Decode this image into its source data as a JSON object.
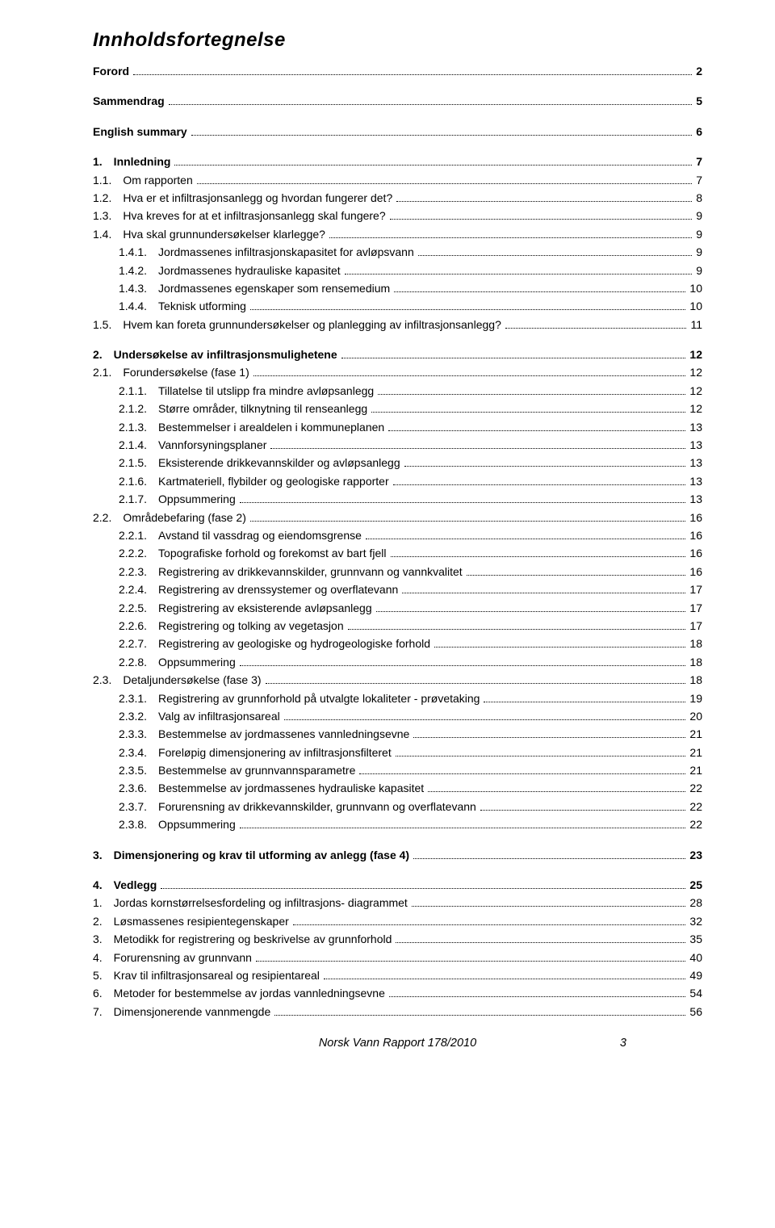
{
  "title": "Innholdsfortegnelse",
  "footer_text": "Norsk Vann Rapport 178/2010",
  "footer_page": "3",
  "toc": [
    {
      "label": "Forord",
      "page": "2",
      "bold": true,
      "indent": 0
    },
    {
      "gap": true
    },
    {
      "label": "Sammendrag",
      "page": "5",
      "bold": true,
      "indent": 0
    },
    {
      "gap": true
    },
    {
      "label": "English summary",
      "page": "6",
      "bold": true,
      "indent": 0
    },
    {
      "gap": true
    },
    {
      "label": "1. Innledning",
      "page": "7",
      "bold": true,
      "indent": 0
    },
    {
      "label": "1.1. Om rapporten",
      "page": "7",
      "indent": 0
    },
    {
      "label": "1.2. Hva er et infiltrasjonsanlegg og hvordan fungerer det?",
      "page": "8",
      "indent": 0
    },
    {
      "label": "1.3. Hva kreves for at et infiltrasjonsanlegg skal fungere?",
      "page": "9",
      "indent": 0
    },
    {
      "label": "1.4. Hva skal grunnundersøkelser klarlegge?",
      "page": "9",
      "indent": 0
    },
    {
      "label": "1.4.1. Jordmassenes infiltrasjonskapasitet for avløpsvann",
      "page": "9",
      "indent": 1
    },
    {
      "label": "1.4.2. Jordmassenes hydrauliske kapasitet",
      "page": "9",
      "indent": 1
    },
    {
      "label": "1.4.3. Jordmassenes egenskaper som rensemedium",
      "page": "10",
      "indent": 1
    },
    {
      "label": "1.4.4. Teknisk utforming",
      "page": "10",
      "indent": 1
    },
    {
      "label": "1.5. Hvem kan foreta grunnundersøkelser og planlegging av infiltrasjonsanlegg?",
      "page": "11",
      "indent": 0
    },
    {
      "gap": true
    },
    {
      "label": "2. Undersøkelse av infiltrasjonsmulighetene",
      "page": "12",
      "bold": true,
      "indent": 0
    },
    {
      "label": "2.1. Forundersøkelse (fase 1)",
      "page": "12",
      "indent": 0
    },
    {
      "label": "2.1.1. Tillatelse til utslipp fra mindre avløpsanlegg",
      "page": "12",
      "indent": 1
    },
    {
      "label": "2.1.2. Større områder, tilknytning til renseanlegg",
      "page": "12",
      "indent": 1
    },
    {
      "label": "2.1.3. Bestemmelser i arealdelen i kommuneplanen",
      "page": "13",
      "indent": 1
    },
    {
      "label": "2.1.4. Vannforsyningsplaner",
      "page": "13",
      "indent": 1
    },
    {
      "label": "2.1.5. Eksisterende drikkevannskilder og avløpsanlegg",
      "page": "13",
      "indent": 1
    },
    {
      "label": "2.1.6. Kartmateriell, flybilder og geologiske rapporter",
      "page": "13",
      "indent": 1
    },
    {
      "label": "2.1.7. Oppsummering",
      "page": "13",
      "indent": 1
    },
    {
      "label": "2.2. Områdebefaring (fase 2)",
      "page": "16",
      "indent": 0
    },
    {
      "label": "2.2.1. Avstand til vassdrag og eiendomsgrense",
      "page": "16",
      "indent": 1
    },
    {
      "label": "2.2.2. Topografiske forhold og forekomst av bart fjell",
      "page": "16",
      "indent": 1
    },
    {
      "label": "2.2.3. Registrering av drikkevannskilder, grunnvann og vannkvalitet",
      "page": "16",
      "indent": 1
    },
    {
      "label": "2.2.4. Registrering av drenssystemer og overflatevann",
      "page": "17",
      "indent": 1
    },
    {
      "label": "2.2.5. Registrering av eksisterende avløpsanlegg",
      "page": "17",
      "indent": 1
    },
    {
      "label": "2.2.6. Registrering og tolking av vegetasjon",
      "page": "17",
      "indent": 1
    },
    {
      "label": "2.2.7. Registrering av geologiske og hydrogeologiske forhold",
      "page": "18",
      "indent": 1
    },
    {
      "label": "2.2.8. Oppsummering",
      "page": "18",
      "indent": 1
    },
    {
      "label": "2.3. Detaljundersøkelse (fase 3)",
      "page": "18",
      "indent": 0
    },
    {
      "label": "2.3.1. Registrering av grunnforhold på utvalgte lokaliteter - prøvetaking",
      "page": "19",
      "indent": 1
    },
    {
      "label": "2.3.2. Valg av infiltrasjonsareal",
      "page": "20",
      "indent": 1
    },
    {
      "label": "2.3.3. Bestemmelse av jordmassenes vannledningsevne",
      "page": "21",
      "indent": 1
    },
    {
      "label": "2.3.4. Foreløpig dimensjonering av infiltrasjonsfilteret",
      "page": "21",
      "indent": 1
    },
    {
      "label": "2.3.5. Bestemmelse av grunnvannsparametre",
      "page": "21",
      "indent": 1
    },
    {
      "label": "2.3.6. Bestemmelse av jordmassenes hydrauliske kapasitet",
      "page": "22",
      "indent": 1
    },
    {
      "label": "2.3.7. Forurensning av drikkevannskilder, grunnvann og overflatevann",
      "page": "22",
      "indent": 1
    },
    {
      "label": "2.3.8. Oppsummering",
      "page": "22",
      "indent": 1
    },
    {
      "gap": true
    },
    {
      "label": "3. Dimensjonering og krav til utforming av anlegg (fase 4)",
      "page": "23",
      "bold": true,
      "indent": 0
    },
    {
      "gap": true
    },
    {
      "label": "4. Vedlegg",
      "page": "25",
      "bold": true,
      "indent": 0
    },
    {
      "label": "1. Jordas kornstørrelsesfordeling og infiltrasjons- diagrammet",
      "page": "28",
      "indent": 0
    },
    {
      "label": "2. Løsmassenes resipientegenskaper",
      "page": "32",
      "indent": 0
    },
    {
      "label": "3. Metodikk for registrering og beskrivelse av grunnforhold",
      "page": "35",
      "indent": 0
    },
    {
      "label": "4. Forurensning av grunnvann",
      "page": "40",
      "indent": 0
    },
    {
      "label": "5. Krav til infiltrasjonsareal og resipientareal",
      "page": "49",
      "indent": 0
    },
    {
      "label": "6. Metoder for bestemmelse av jordas vannledningsevne",
      "page": "54",
      "indent": 0
    },
    {
      "label": "7. Dimensjonerende vannmengde",
      "page": "56",
      "indent": 0
    }
  ]
}
